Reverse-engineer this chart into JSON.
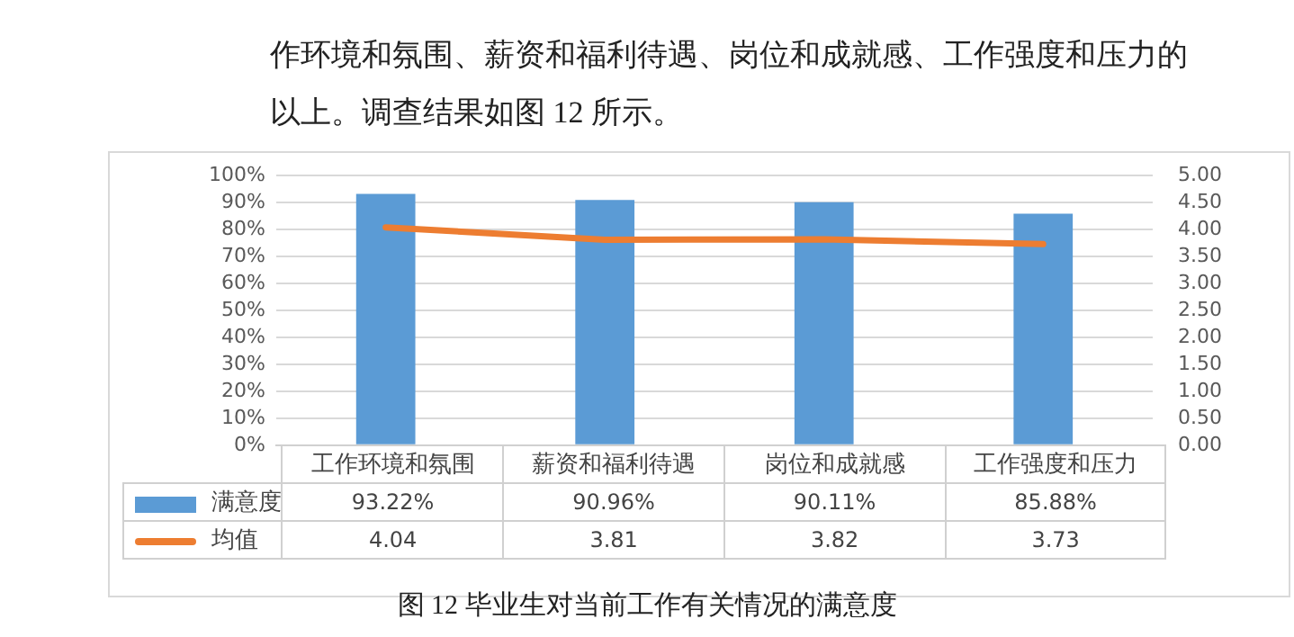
{
  "chart_data": {
    "type": "bar",
    "categories": [
      "工作环境和氛围",
      "薪资和福利待遇",
      "岗位和成就感",
      "工作强度和压力"
    ],
    "series": [
      {
        "name": "满意度",
        "color": "#5b9bd5",
        "values": [
          93.22,
          90.96,
          90.11,
          85.88
        ],
        "value_labels": [
          "93.22%",
          "90.96%",
          "90.11%",
          "85.88%"
        ]
      },
      {
        "name": "均值",
        "type": "line",
        "axis": "y2",
        "color": "#ed7d31",
        "values": [
          4.04,
          3.81,
          3.82,
          3.73
        ],
        "value_labels": [
          "4.04",
          "3.81",
          "3.82",
          "3.73"
        ]
      }
    ],
    "ylim": [
      0,
      100
    ],
    "yticks": [
      {
        "value": 0,
        "label": "0%"
      },
      {
        "value": 10,
        "label": "10%"
      },
      {
        "value": 20,
        "label": "20%"
      },
      {
        "value": 30,
        "label": "30%"
      },
      {
        "value": 40,
        "label": "40%"
      },
      {
        "value": 50,
        "label": "50%"
      },
      {
        "value": 60,
        "label": "60%"
      },
      {
        "value": 70,
        "label": "70%"
      },
      {
        "value": 80,
        "label": "80%"
      },
      {
        "value": 90,
        "label": "90%"
      },
      {
        "value": 100,
        "label": "100%"
      }
    ],
    "y2lim": [
      0,
      5
    ],
    "y2ticks": [
      {
        "value": 0,
        "label": "0.00"
      },
      {
        "value": 0.5,
        "label": "0.50"
      },
      {
        "value": 1,
        "label": "1.00"
      },
      {
        "value": 1.5,
        "label": "1.50"
      },
      {
        "value": 2,
        "label": "2.00"
      },
      {
        "value": 2.5,
        "label": "2.50"
      },
      {
        "value": 3,
        "label": "3.00"
      },
      {
        "value": 3.5,
        "label": "3.50"
      },
      {
        "value": 4,
        "label": "4.00"
      },
      {
        "value": 4.5,
        "label": "4.50"
      },
      {
        "value": 5,
        "label": "5.00"
      }
    ],
    "grid": "y",
    "legend": "bottom",
    "marker": "none",
    "line_style": "solid",
    "annotations": [
      "作环境和氛围、薪资和福利待遇、岗位和成就感、工作强度和压力的",
      "以上。调查结果如图 12 所示。",
      "图 12 毕业生对当前工作有关情况的满意度"
    ]
  }
}
